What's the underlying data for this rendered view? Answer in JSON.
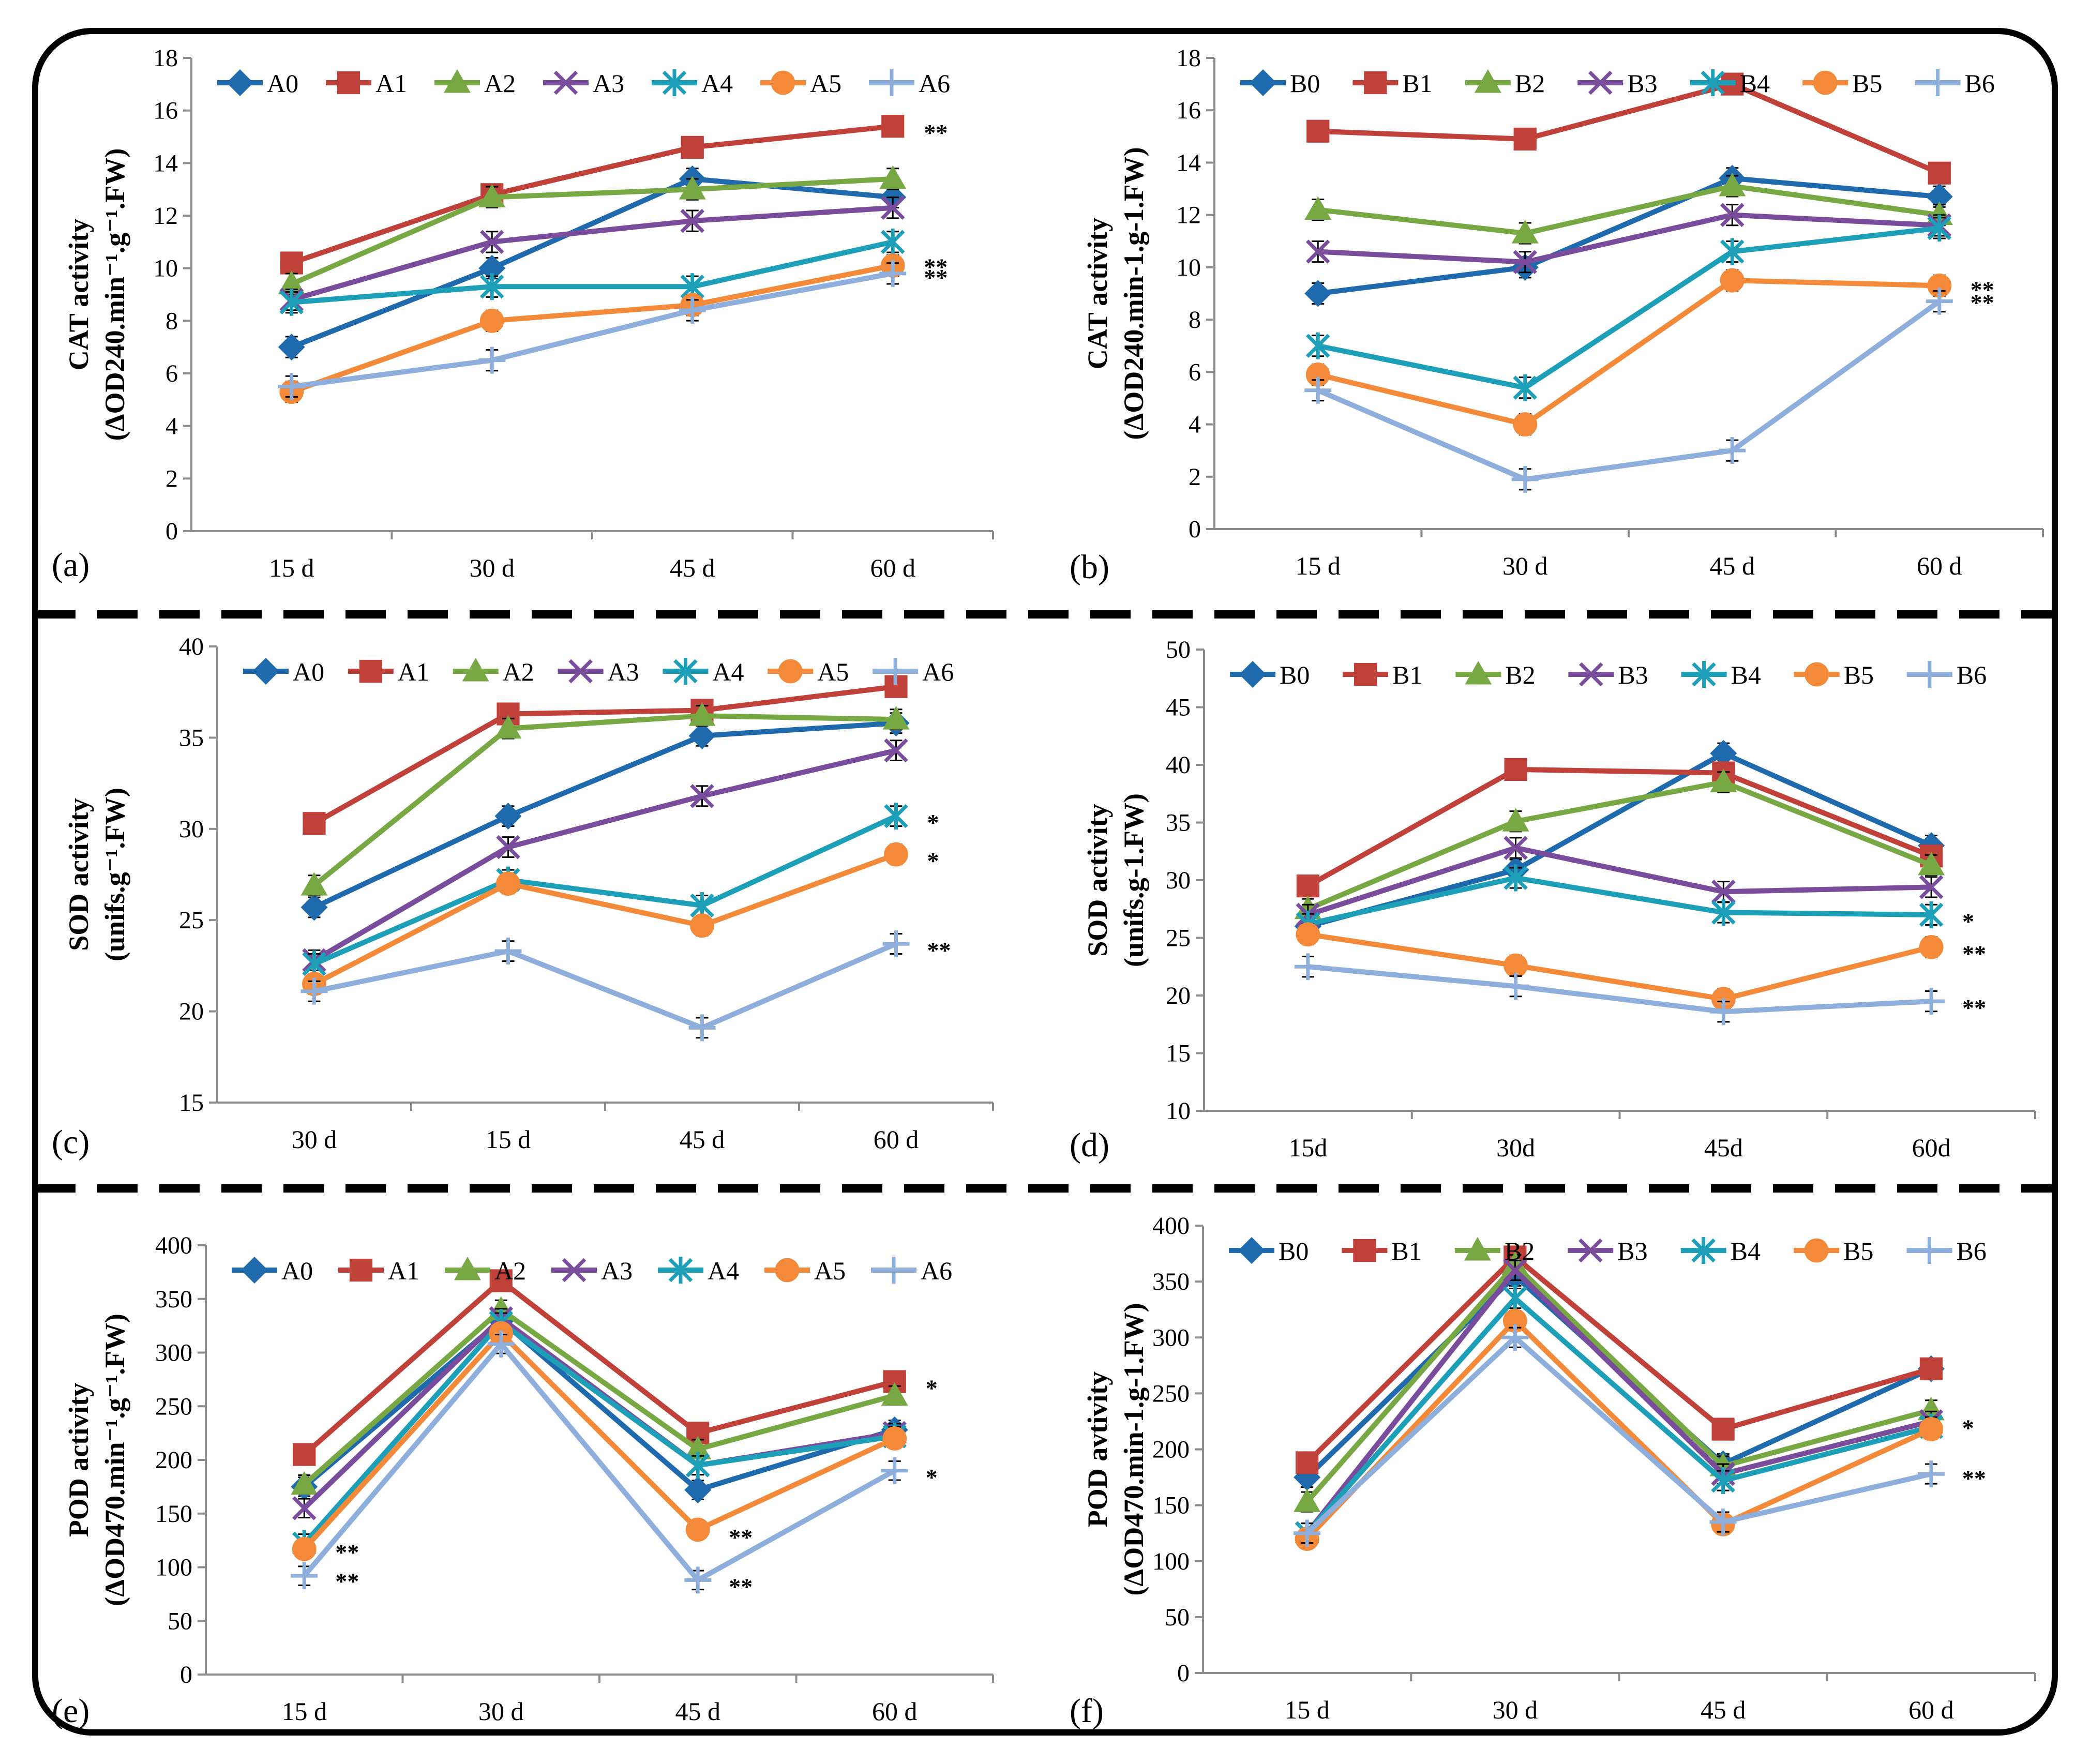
{
  "colors": {
    "0": "#1f6aad",
    "1": "#c0403a",
    "2": "#77a843",
    "3": "#7a4d9c",
    "4": "#1d9fb8",
    "5": "#f28a3a",
    "6": "#8eaedb"
  },
  "chart_data": [
    {
      "panel": "(a)",
      "type": "line",
      "ylabel_line1": "CAT activity",
      "ylabel_line2": "(ΔOD240.min⁻¹.g⁻¹.FW)",
      "ylim": [
        0,
        18
      ],
      "yticks": [
        "0",
        "2",
        "4",
        "6",
        "8",
        "10",
        "12",
        "14",
        "16",
        "18"
      ],
      "categories": [
        "15 d",
        "30 d",
        "45 d",
        "60 d"
      ],
      "series": [
        {
          "name": "A0",
          "values": [
            7.0,
            10.0,
            13.4,
            12.7
          ]
        },
        {
          "name": "A1",
          "values": [
            10.2,
            12.8,
            14.6,
            15.4
          ]
        },
        {
          "name": "A2",
          "values": [
            9.4,
            12.7,
            13.0,
            13.4
          ]
        },
        {
          "name": "A3",
          "values": [
            8.8,
            11.0,
            11.8,
            12.3
          ]
        },
        {
          "name": "A4",
          "values": [
            8.7,
            9.3,
            9.3,
            11.0
          ]
        },
        {
          "name": "A5",
          "values": [
            5.3,
            8.0,
            8.6,
            10.1
          ]
        },
        {
          "name": "A6",
          "values": [
            5.5,
            6.5,
            8.4,
            9.8
          ]
        }
      ],
      "annotations": [
        {
          "text": "**",
          "category": 3,
          "value": 15.4
        },
        {
          "text": "**",
          "category": 3,
          "value": 10.3
        },
        {
          "text": "**",
          "category": 3,
          "value": 9.9
        }
      ]
    },
    {
      "panel": "(b)",
      "type": "line",
      "ylabel_line1": "CAT activity",
      "ylabel_line2": "(ΔOD240.min-1.g-1.FW)",
      "ylim": [
        0,
        18
      ],
      "yticks": [
        "0",
        "2",
        "4",
        "6",
        "8",
        "10",
        "12",
        "14",
        "16",
        "18"
      ],
      "categories": [
        "15 d",
        "30 d",
        "45 d",
        "60 d"
      ],
      "series": [
        {
          "name": "B0",
          "values": [
            9.0,
            10.0,
            13.4,
            12.7
          ]
        },
        {
          "name": "B1",
          "values": [
            15.2,
            14.9,
            17.0,
            13.6
          ]
        },
        {
          "name": "B2",
          "values": [
            12.2,
            11.3,
            13.1,
            12.0
          ]
        },
        {
          "name": "B3",
          "values": [
            10.6,
            10.2,
            12.0,
            11.6
          ]
        },
        {
          "name": "B4",
          "values": [
            7.0,
            5.4,
            10.6,
            11.5
          ]
        },
        {
          "name": "B5",
          "values": [
            5.9,
            4.0,
            9.5,
            9.3
          ]
        },
        {
          "name": "B6",
          "values": [
            5.3,
            1.9,
            3.0,
            8.7
          ]
        }
      ],
      "annotations": [
        {
          "text": "**",
          "category": 3,
          "value": 9.4
        },
        {
          "text": "**",
          "category": 3,
          "value": 8.9
        }
      ]
    },
    {
      "panel": "(c)",
      "type": "line",
      "ylabel_line1": "SOD activity",
      "ylabel_line2": "(unifs.g⁻¹.FW)",
      "ylim": [
        15,
        40
      ],
      "yticks": [
        "15",
        "20",
        "25",
        "30",
        "35",
        "40"
      ],
      "categories": [
        "30 d",
        "15 d",
        "45 d",
        "60 d"
      ],
      "series": [
        {
          "name": "A0",
          "values": [
            25.7,
            30.7,
            35.1,
            35.8
          ]
        },
        {
          "name": "A1",
          "values": [
            30.3,
            36.3,
            36.5,
            37.8
          ]
        },
        {
          "name": "A2",
          "values": [
            26.9,
            35.5,
            36.2,
            36.0
          ]
        },
        {
          "name": "A3",
          "values": [
            22.8,
            29.0,
            31.8,
            34.3
          ]
        },
        {
          "name": "A4",
          "values": [
            22.6,
            27.2,
            25.8,
            30.7
          ]
        },
        {
          "name": "A5",
          "values": [
            21.5,
            27.0,
            24.7,
            28.6
          ]
        },
        {
          "name": "A6",
          "values": [
            21.1,
            23.3,
            19.1,
            23.7
          ]
        }
      ],
      "annotations": [
        {
          "text": "*",
          "category": 3,
          "value": 30.7
        },
        {
          "text": "*",
          "category": 3,
          "value": 28.6
        },
        {
          "text": "**",
          "category": 3,
          "value": 23.7
        }
      ]
    },
    {
      "panel": "(d)",
      "type": "line",
      "ylabel_line1": "SOD activity",
      "ylabel_line2": "(unifs.g-1.FW)",
      "ylim": [
        10,
        50
      ],
      "yticks": [
        "10",
        "15",
        "20",
        "25",
        "30",
        "35",
        "40",
        "45",
        "50"
      ],
      "categories": [
        "15d",
        "30d",
        "45d",
        "60d"
      ],
      "series": [
        {
          "name": "B0",
          "values": [
            26.0,
            30.9,
            41.0,
            33.0
          ]
        },
        {
          "name": "B1",
          "values": [
            29.5,
            39.6,
            39.3,
            32.1
          ]
        },
        {
          "name": "B2",
          "values": [
            27.5,
            35.1,
            38.5,
            31.3
          ]
        },
        {
          "name": "B3",
          "values": [
            27.0,
            32.8,
            29.0,
            29.4
          ]
        },
        {
          "name": "B4",
          "values": [
            26.2,
            30.2,
            27.2,
            27.0
          ]
        },
        {
          "name": "B5",
          "values": [
            25.3,
            22.6,
            19.7,
            24.2
          ]
        },
        {
          "name": "B6",
          "values": [
            22.5,
            20.8,
            18.6,
            19.5
          ]
        }
      ],
      "annotations": [
        {
          "text": "*",
          "category": 3,
          "value": 27.0
        },
        {
          "text": "**",
          "category": 3,
          "value": 24.2
        },
        {
          "text": "**",
          "category": 3,
          "value": 19.5
        }
      ]
    },
    {
      "panel": "(e)",
      "type": "line",
      "ylabel_line1": "POD activity",
      "ylabel_line2": "(ΔOD470.min⁻¹.g⁻¹.FW)",
      "ylim": [
        0,
        400
      ],
      "yticks": [
        "0",
        "50",
        "100",
        "150",
        "200",
        "250",
        "300",
        "350",
        "400"
      ],
      "categories": [
        "15 d",
        "30 d",
        "45 d",
        "60 d"
      ],
      "series": [
        {
          "name": "A0",
          "values": [
            175,
            330,
            172,
            228
          ]
        },
        {
          "name": "A1",
          "values": [
            205,
            367,
            225,
            273
          ]
        },
        {
          "name": "A2",
          "values": [
            177,
            340,
            210,
            260
          ]
        },
        {
          "name": "A3",
          "values": [
            155,
            332,
            195,
            225
          ]
        },
        {
          "name": "A4",
          "values": [
            122,
            328,
            195,
            222
          ]
        },
        {
          "name": "A5",
          "values": [
            117,
            318,
            135,
            220
          ]
        },
        {
          "name": "A6",
          "values": [
            92,
            308,
            88,
            190
          ]
        }
      ],
      "annotations": [
        {
          "text": "**",
          "category": 0,
          "value": 120
        },
        {
          "text": "**",
          "category": 0,
          "value": 93
        },
        {
          "text": "**",
          "category": 2,
          "value": 134
        },
        {
          "text": "**",
          "category": 2,
          "value": 88
        },
        {
          "text": "*",
          "category": 3,
          "value": 273
        },
        {
          "text": "*",
          "category": 3,
          "value": 190
        }
      ]
    },
    {
      "panel": "(f)",
      "type": "line",
      "ylabel_line1": "POD avtivity",
      "ylabel_line2": "(ΔOD470.min-1.g-1.FW)",
      "ylim": [
        0,
        400
      ],
      "yticks": [
        "0",
        "50",
        "100",
        "150",
        "200",
        "250",
        "300",
        "350",
        "400"
      ],
      "categories": [
        "15 d",
        "30 d",
        "45 d",
        "60 d"
      ],
      "series": [
        {
          "name": "B0",
          "values": [
            175,
            355,
            187,
            272
          ]
        },
        {
          "name": "B1",
          "values": [
            188,
            372,
            218,
            272
          ]
        },
        {
          "name": "B2",
          "values": [
            153,
            365,
            185,
            235
          ]
        },
        {
          "name": "B3",
          "values": [
            125,
            360,
            178,
            225
          ]
        },
        {
          "name": "B4",
          "values": [
            125,
            335,
            172,
            220
          ]
        },
        {
          "name": "B5",
          "values": [
            120,
            315,
            133,
            218
          ]
        },
        {
          "name": "B6",
          "values": [
            125,
            300,
            135,
            178
          ]
        }
      ],
      "annotations": [
        {
          "text": "*",
          "category": 3,
          "value": 225
        },
        {
          "text": "**",
          "category": 3,
          "value": 180
        }
      ]
    }
  ]
}
